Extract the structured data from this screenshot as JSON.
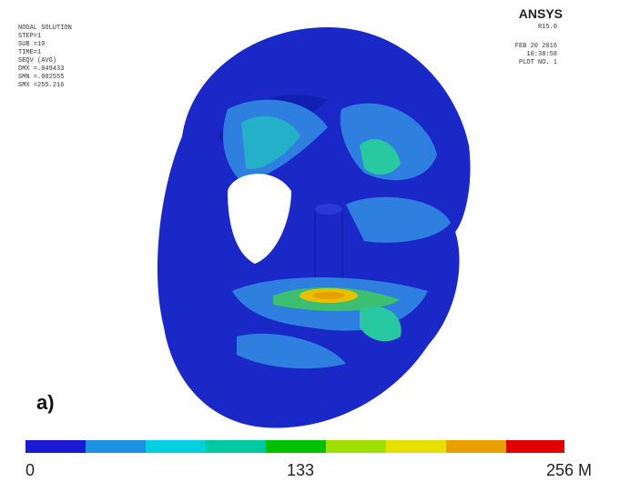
{
  "header": {
    "left_lines": [
      "NODAL SOLUTION",
      "STEP=1",
      "SUB =10",
      "TIME=1",
      "SEQV (AVG)",
      "DMX =.049433",
      "SMN =.002555",
      "SMX =255.216"
    ],
    "brand": "ANSYS",
    "version": "R15.0",
    "right_lines": [
      "FEB 20 2016",
      "10:38:58",
      "PLOT NO. 1"
    ]
  },
  "figure_label": "a)",
  "colorbar": {
    "labels": [
      "0",
      "133",
      "256 M"
    ]
  }
}
